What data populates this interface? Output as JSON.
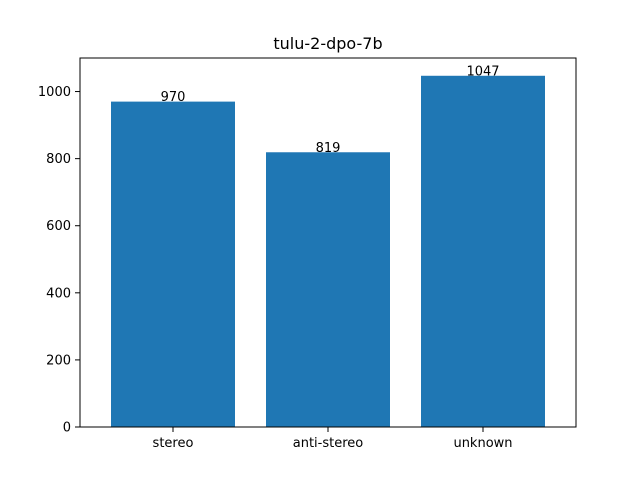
{
  "chart_data": {
    "type": "bar",
    "title": "tulu-2-dpo-7b",
    "categories": [
      "stereo",
      "anti-stereo",
      "unknown"
    ],
    "values": [
      970,
      819,
      1047
    ],
    "data_labels": [
      "970",
      "819",
      "1047"
    ],
    "ylim": [
      0,
      1100
    ],
    "yticks": [
      0,
      200,
      400,
      600,
      800,
      1000
    ],
    "xlabel": "",
    "ylabel": "",
    "grid": false,
    "bar_color": "#1f77b4"
  }
}
